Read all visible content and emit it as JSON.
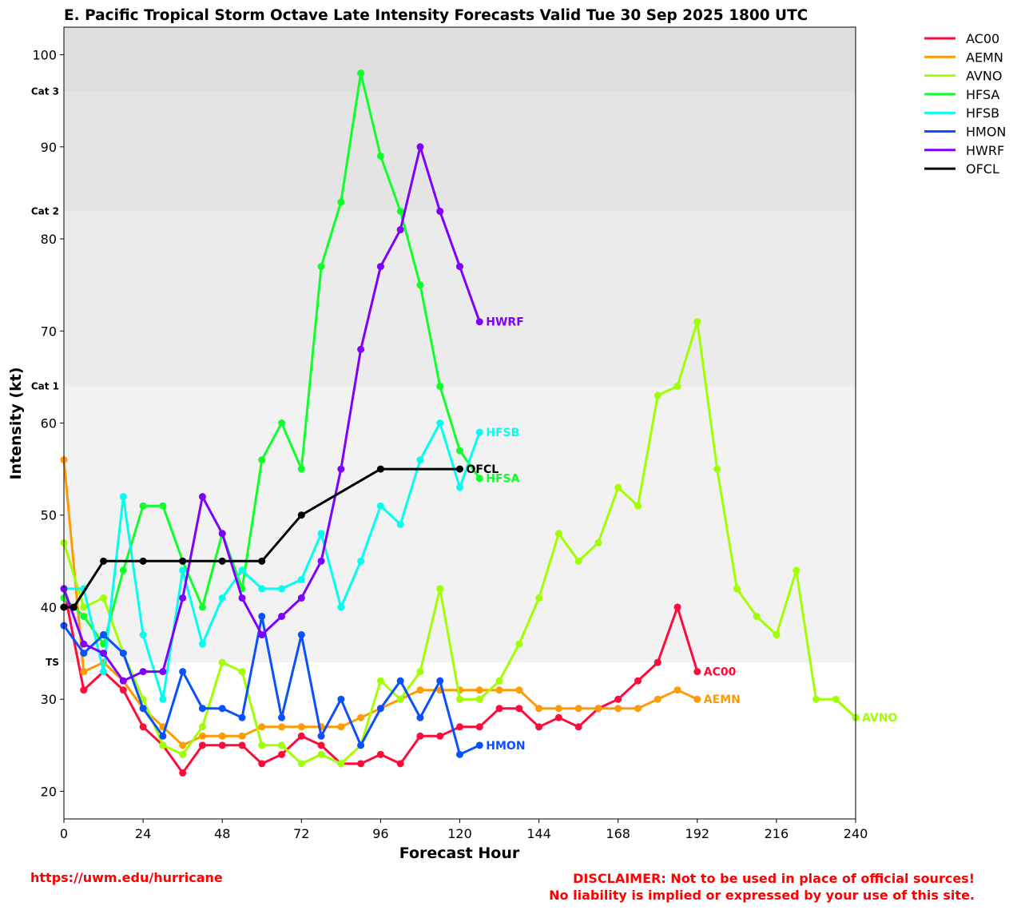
{
  "chart_data": {
    "type": "line",
    "title": "E. Pacific Tropical Storm Octave Late Intensity Forecasts Valid Tue 30 Sep 2025 1800 UTC",
    "xlabel": "Forecast Hour",
    "ylabel": "Intensity (kt)",
    "xlim": [
      0,
      240
    ],
    "ylim": [
      17,
      103
    ],
    "xticks": [
      0,
      24,
      48,
      72,
      96,
      120,
      144,
      168,
      192,
      216,
      240
    ],
    "yticks": [
      20,
      30,
      40,
      50,
      60,
      70,
      80,
      90,
      100
    ],
    "legend_position": "upper-right-outside",
    "bands": [
      {
        "label": "TS",
        "from": 34,
        "to": 64,
        "color": "#f2f2f2"
      },
      {
        "label": "Cat 1",
        "from": 64,
        "to": 83,
        "color": "#ebebeb"
      },
      {
        "label": "Cat 2",
        "from": 83,
        "to": 96,
        "color": "#e4e4e4"
      },
      {
        "label": "Cat 3",
        "from": 96,
        "to": 103,
        "color": "#dedede"
      }
    ],
    "series": [
      {
        "name": "AC00",
        "color": "#ff0a3a",
        "x": [
          0,
          6,
          12,
          18,
          24,
          30,
          36,
          42,
          48,
          54,
          60,
          66,
          72,
          78,
          84,
          90,
          96,
          102,
          108,
          114,
          120,
          126,
          132,
          138,
          144,
          150,
          156,
          162,
          168,
          174,
          180,
          186,
          192
        ],
        "y": [
          42,
          31,
          33,
          31,
          27,
          25,
          22,
          25,
          25,
          25,
          23,
          24,
          26,
          25,
          23,
          23,
          24,
          23,
          26,
          26,
          27,
          27,
          29,
          29,
          27,
          28,
          27,
          29,
          30,
          32,
          34,
          40,
          33
        ]
      },
      {
        "name": "AEMN",
        "color": "#ff9a00",
        "x": [
          0,
          6,
          12,
          18,
          24,
          30,
          36,
          42,
          48,
          54,
          60,
          66,
          72,
          78,
          84,
          90,
          96,
          102,
          108,
          114,
          120,
          126,
          132,
          138,
          144,
          150,
          156,
          162,
          168,
          174,
          180,
          186,
          192
        ],
        "y": [
          56,
          33,
          34,
          32,
          29,
          27,
          25,
          26,
          26,
          26,
          27,
          27,
          27,
          27,
          27,
          28,
          29,
          30,
          31,
          31,
          31,
          31,
          31,
          31,
          29,
          29,
          29,
          29,
          29,
          29,
          30,
          31,
          30
        ]
      },
      {
        "name": "AVNO",
        "color": "#a0ff00",
        "x": [
          0,
          6,
          12,
          18,
          24,
          30,
          36,
          42,
          48,
          54,
          60,
          66,
          72,
          78,
          84,
          90,
          96,
          102,
          108,
          114,
          120,
          126,
          132,
          138,
          144,
          150,
          156,
          162,
          168,
          174,
          180,
          186,
          192,
          198,
          204,
          210,
          216,
          222,
          228,
          234,
          240
        ],
        "y": [
          47,
          40,
          41,
          35,
          30,
          25,
          24,
          27,
          34,
          33,
          25,
          25,
          23,
          24,
          23,
          25,
          32,
          30,
          33,
          42,
          30,
          30,
          32,
          36,
          41,
          48,
          45,
          47,
          53,
          51,
          63,
          64,
          71,
          55,
          42,
          39,
          37,
          44,
          30,
          30,
          28
        ]
      },
      {
        "name": "HFSA",
        "color": "#10ff2a",
        "x": [
          0,
          6,
          12,
          18,
          24,
          30,
          36,
          42,
          48,
          54,
          60,
          66,
          72,
          78,
          84,
          90,
          96,
          102,
          108,
          114,
          120,
          126
        ],
        "y": [
          41,
          39,
          36,
          44,
          51,
          51,
          45,
          40,
          48,
          42,
          56,
          60,
          55,
          77,
          84,
          98,
          89,
          83,
          75,
          64,
          57,
          54
        ]
      },
      {
        "name": "HFSB",
        "color": "#00ffee",
        "x": [
          0,
          6,
          12,
          18,
          24,
          30,
          36,
          42,
          48,
          54,
          60,
          66,
          72,
          78,
          84,
          90,
          96,
          102,
          108,
          114,
          120,
          126
        ],
        "y": [
          42,
          42,
          33,
          52,
          37,
          30,
          44,
          36,
          41,
          44,
          42,
          42,
          43,
          48,
          40,
          45,
          51,
          49,
          56,
          60,
          53,
          59
        ]
      },
      {
        "name": "HMON",
        "color": "#0a50ff",
        "x": [
          0,
          6,
          12,
          18,
          24,
          30,
          36,
          42,
          48,
          54,
          60,
          66,
          72,
          78,
          84,
          90,
          96,
          102,
          108,
          114,
          120,
          126
        ],
        "y": [
          38,
          35,
          37,
          35,
          29,
          26,
          33,
          29,
          29,
          28,
          39,
          28,
          37,
          26,
          30,
          25,
          29,
          32,
          28,
          32,
          24,
          25
        ]
      },
      {
        "name": "HWRF",
        "color": "#8000ff",
        "x": [
          0,
          6,
          12,
          18,
          24,
          30,
          36,
          42,
          48,
          54,
          60,
          66,
          72,
          78,
          84,
          90,
          96,
          102,
          108,
          114,
          120,
          126
        ],
        "y": [
          42,
          36,
          35,
          32,
          33,
          33,
          41,
          52,
          48,
          41,
          37,
          39,
          41,
          45,
          55,
          68,
          77,
          81,
          90,
          83,
          77,
          71
        ]
      },
      {
        "name": "OFCL",
        "color": "#000000",
        "x": [
          0,
          3,
          12,
          24,
          36,
          48,
          60,
          72,
          96,
          120
        ],
        "y": [
          40,
          40,
          45,
          45,
          45,
          45,
          45,
          50,
          55,
          55
        ]
      }
    ]
  },
  "footer": {
    "url": "https://uwm.edu/hurricane",
    "disclaimer_line1": "DISCLAIMER: Not to be used in place of official sources!",
    "disclaimer_line2": "No liability is implied or expressed by your use of this site."
  }
}
